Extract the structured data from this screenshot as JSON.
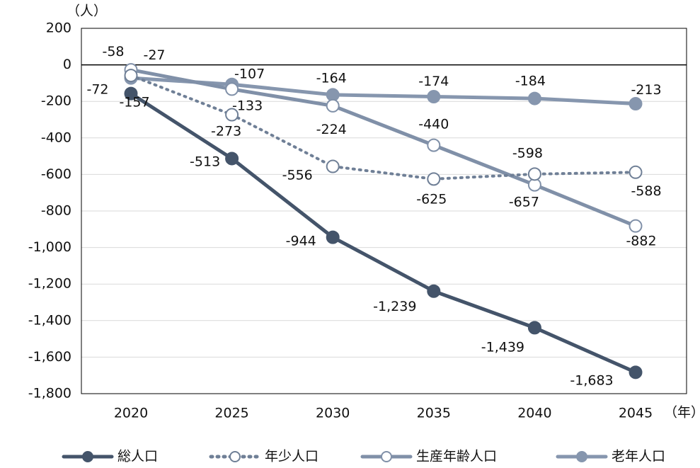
{
  "chart_data": {
    "type": "line",
    "y_unit": "（人）",
    "x_unit": "（年）",
    "categories": [
      "2020",
      "2025",
      "2030",
      "2035",
      "2040",
      "2045"
    ],
    "series": [
      {
        "name": "総人口",
        "color": "#44546a",
        "marker": "filled",
        "dash": "solid",
        "values": [
          -157,
          -513,
          -944,
          -1239,
          -1439,
          -1683
        ],
        "value_labels": [
          "-157",
          "-513",
          "-944",
          "-1,239",
          "-1,439",
          "-1,683"
        ]
      },
      {
        "name": "年少人口",
        "color": "#6f7f96",
        "marker": "open",
        "dash": "dotted",
        "values": [
          -58,
          -273,
          -556,
          -625,
          -598,
          -588
        ]
      },
      {
        "name": "生産年齢人口",
        "color": "#8090a8",
        "marker": "open",
        "dash": "solid",
        "values": [
          -27,
          -133,
          -224,
          -440,
          -657,
          -882
        ]
      },
      {
        "name": "老年人口",
        "color": "#8696ae",
        "marker": "filled",
        "dash": "solid",
        "values": [
          -72,
          -107,
          -164,
          -174,
          -184,
          -213
        ]
      }
    ],
    "ylim": [
      -1800,
      200
    ],
    "yticks": [
      200,
      0,
      -200,
      -400,
      -600,
      -800,
      {
        "value": -1000,
        "label": "-1,000"
      },
      {
        "value": -1200,
        "label": "-1,200"
      },
      {
        "value": -1400,
        "label": "-1,400"
      },
      {
        "value": -1600,
        "label": "-1,600"
      },
      {
        "value": -1800,
        "label": "-1,800"
      }
    ],
    "grid": true
  }
}
